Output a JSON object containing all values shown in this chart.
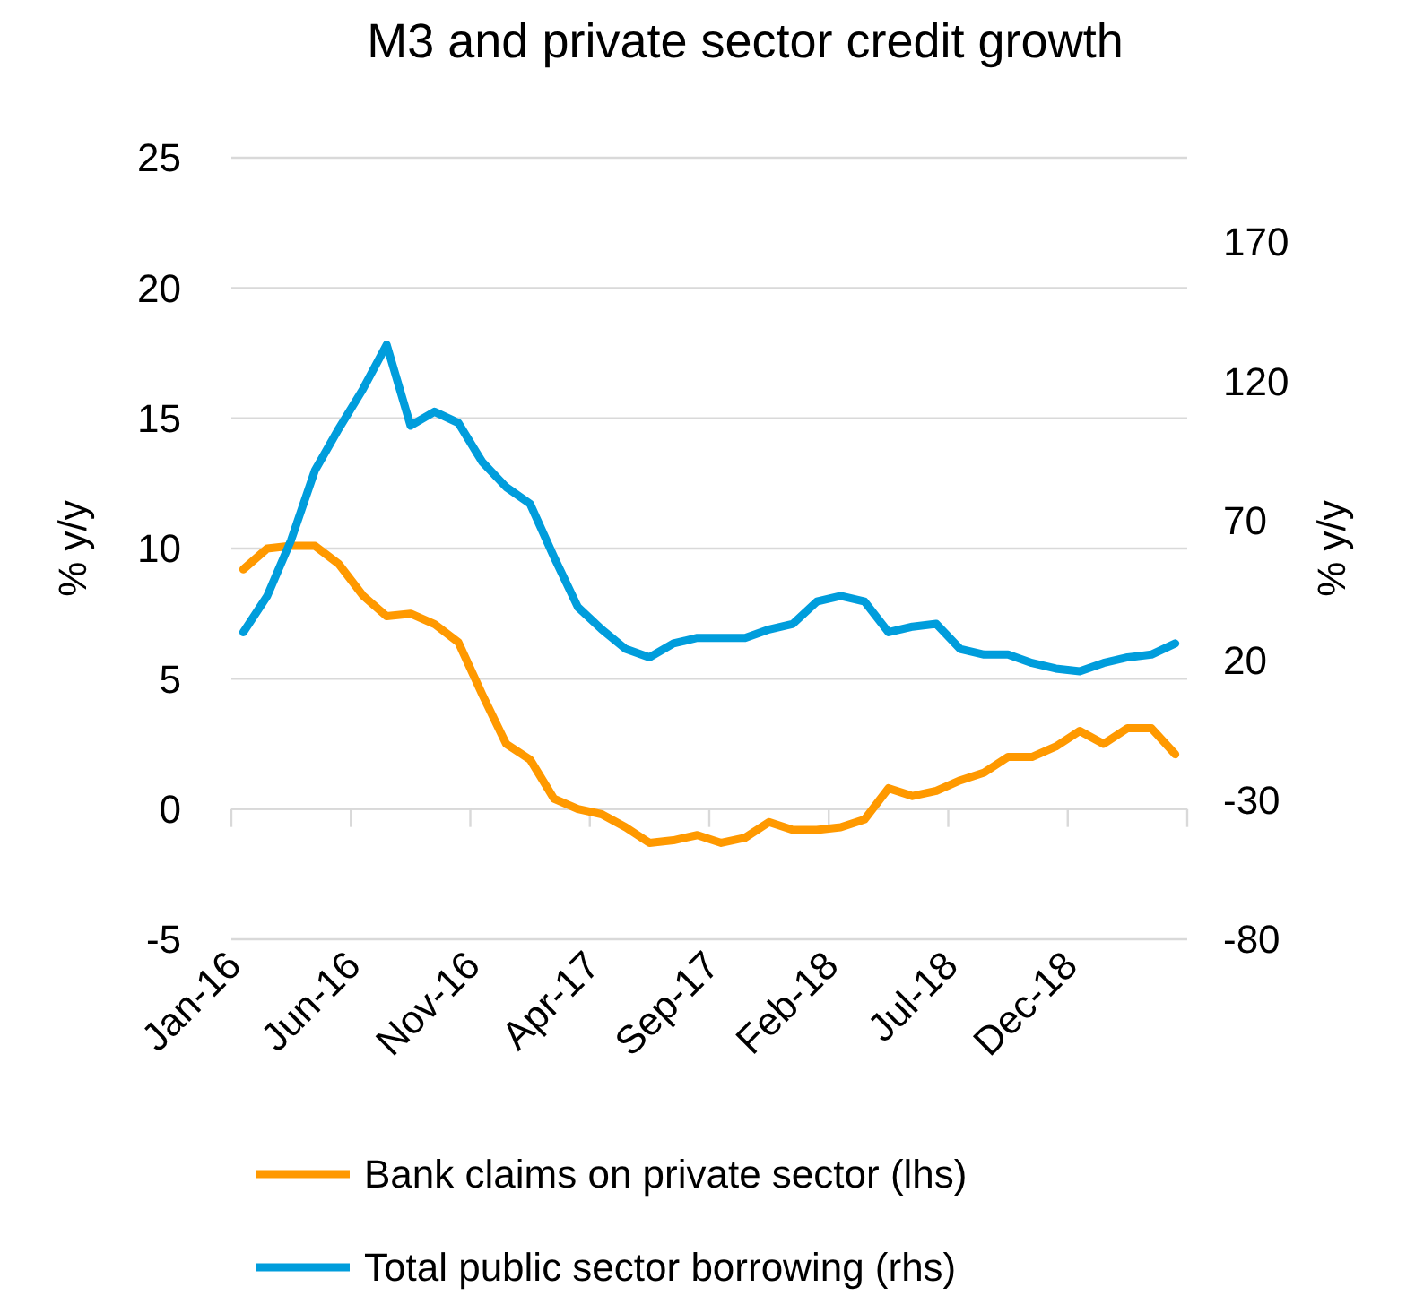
{
  "chart_data": {
    "type": "line",
    "title": "M3 and private sector credit growth",
    "ylabel": "% y/y",
    "y2label": "% y/y",
    "categories": [
      "Jan-16",
      null,
      null,
      null,
      null,
      "Jun-16",
      null,
      null,
      null,
      null,
      "Nov-16",
      null,
      null,
      null,
      null,
      "Apr-17",
      null,
      null,
      null,
      null,
      "Sep-17",
      null,
      null,
      null,
      null,
      "Feb-18",
      null,
      null,
      null,
      null,
      "Jul-18",
      null,
      null,
      null,
      null,
      "Dec-18",
      null,
      null,
      null,
      null
    ],
    "series": [
      {
        "name": "Bank claims on private sector (lhs)",
        "color": "#ff9900",
        "axis": "y",
        "values": [
          9.2,
          10.0,
          10.1,
          10.1,
          9.4,
          8.2,
          7.4,
          7.5,
          7.1,
          6.4,
          4.4,
          2.5,
          1.9,
          0.4,
          0.0,
          -0.2,
          -0.7,
          -1.3,
          -1.2,
          -1.0,
          -1.3,
          -1.1,
          -0.5,
          -0.8,
          -0.8,
          -0.7,
          -0.4,
          0.8,
          0.5,
          0.7,
          1.1,
          1.4,
          2.0,
          2.0,
          2.4,
          3.0,
          2.5,
          3.1,
          3.1,
          2.1
        ]
      },
      {
        "name": "Total public sector borrowing (rhs)",
        "color": "#009ddc",
        "axis": "y2",
        "values": [
          30,
          43,
          63,
          88,
          103,
          117,
          133,
          104,
          109,
          105,
          91,
          82,
          76,
          57,
          39,
          31,
          24,
          21,
          26,
          28,
          28,
          28,
          31,
          33,
          41,
          43,
          41,
          30,
          32,
          33,
          24,
          22,
          22,
          19,
          17,
          16,
          19,
          21,
          22,
          26
        ]
      }
    ],
    "ylim": [
      -5,
      25
    ],
    "yticks": [
      -5,
      0,
      5,
      10,
      15,
      20,
      25
    ],
    "y2lim": [
      -80,
      200
    ],
    "y2ticks": [
      -80,
      -30,
      20,
      70,
      120,
      170
    ],
    "grid": "y",
    "legend": "bottom"
  }
}
